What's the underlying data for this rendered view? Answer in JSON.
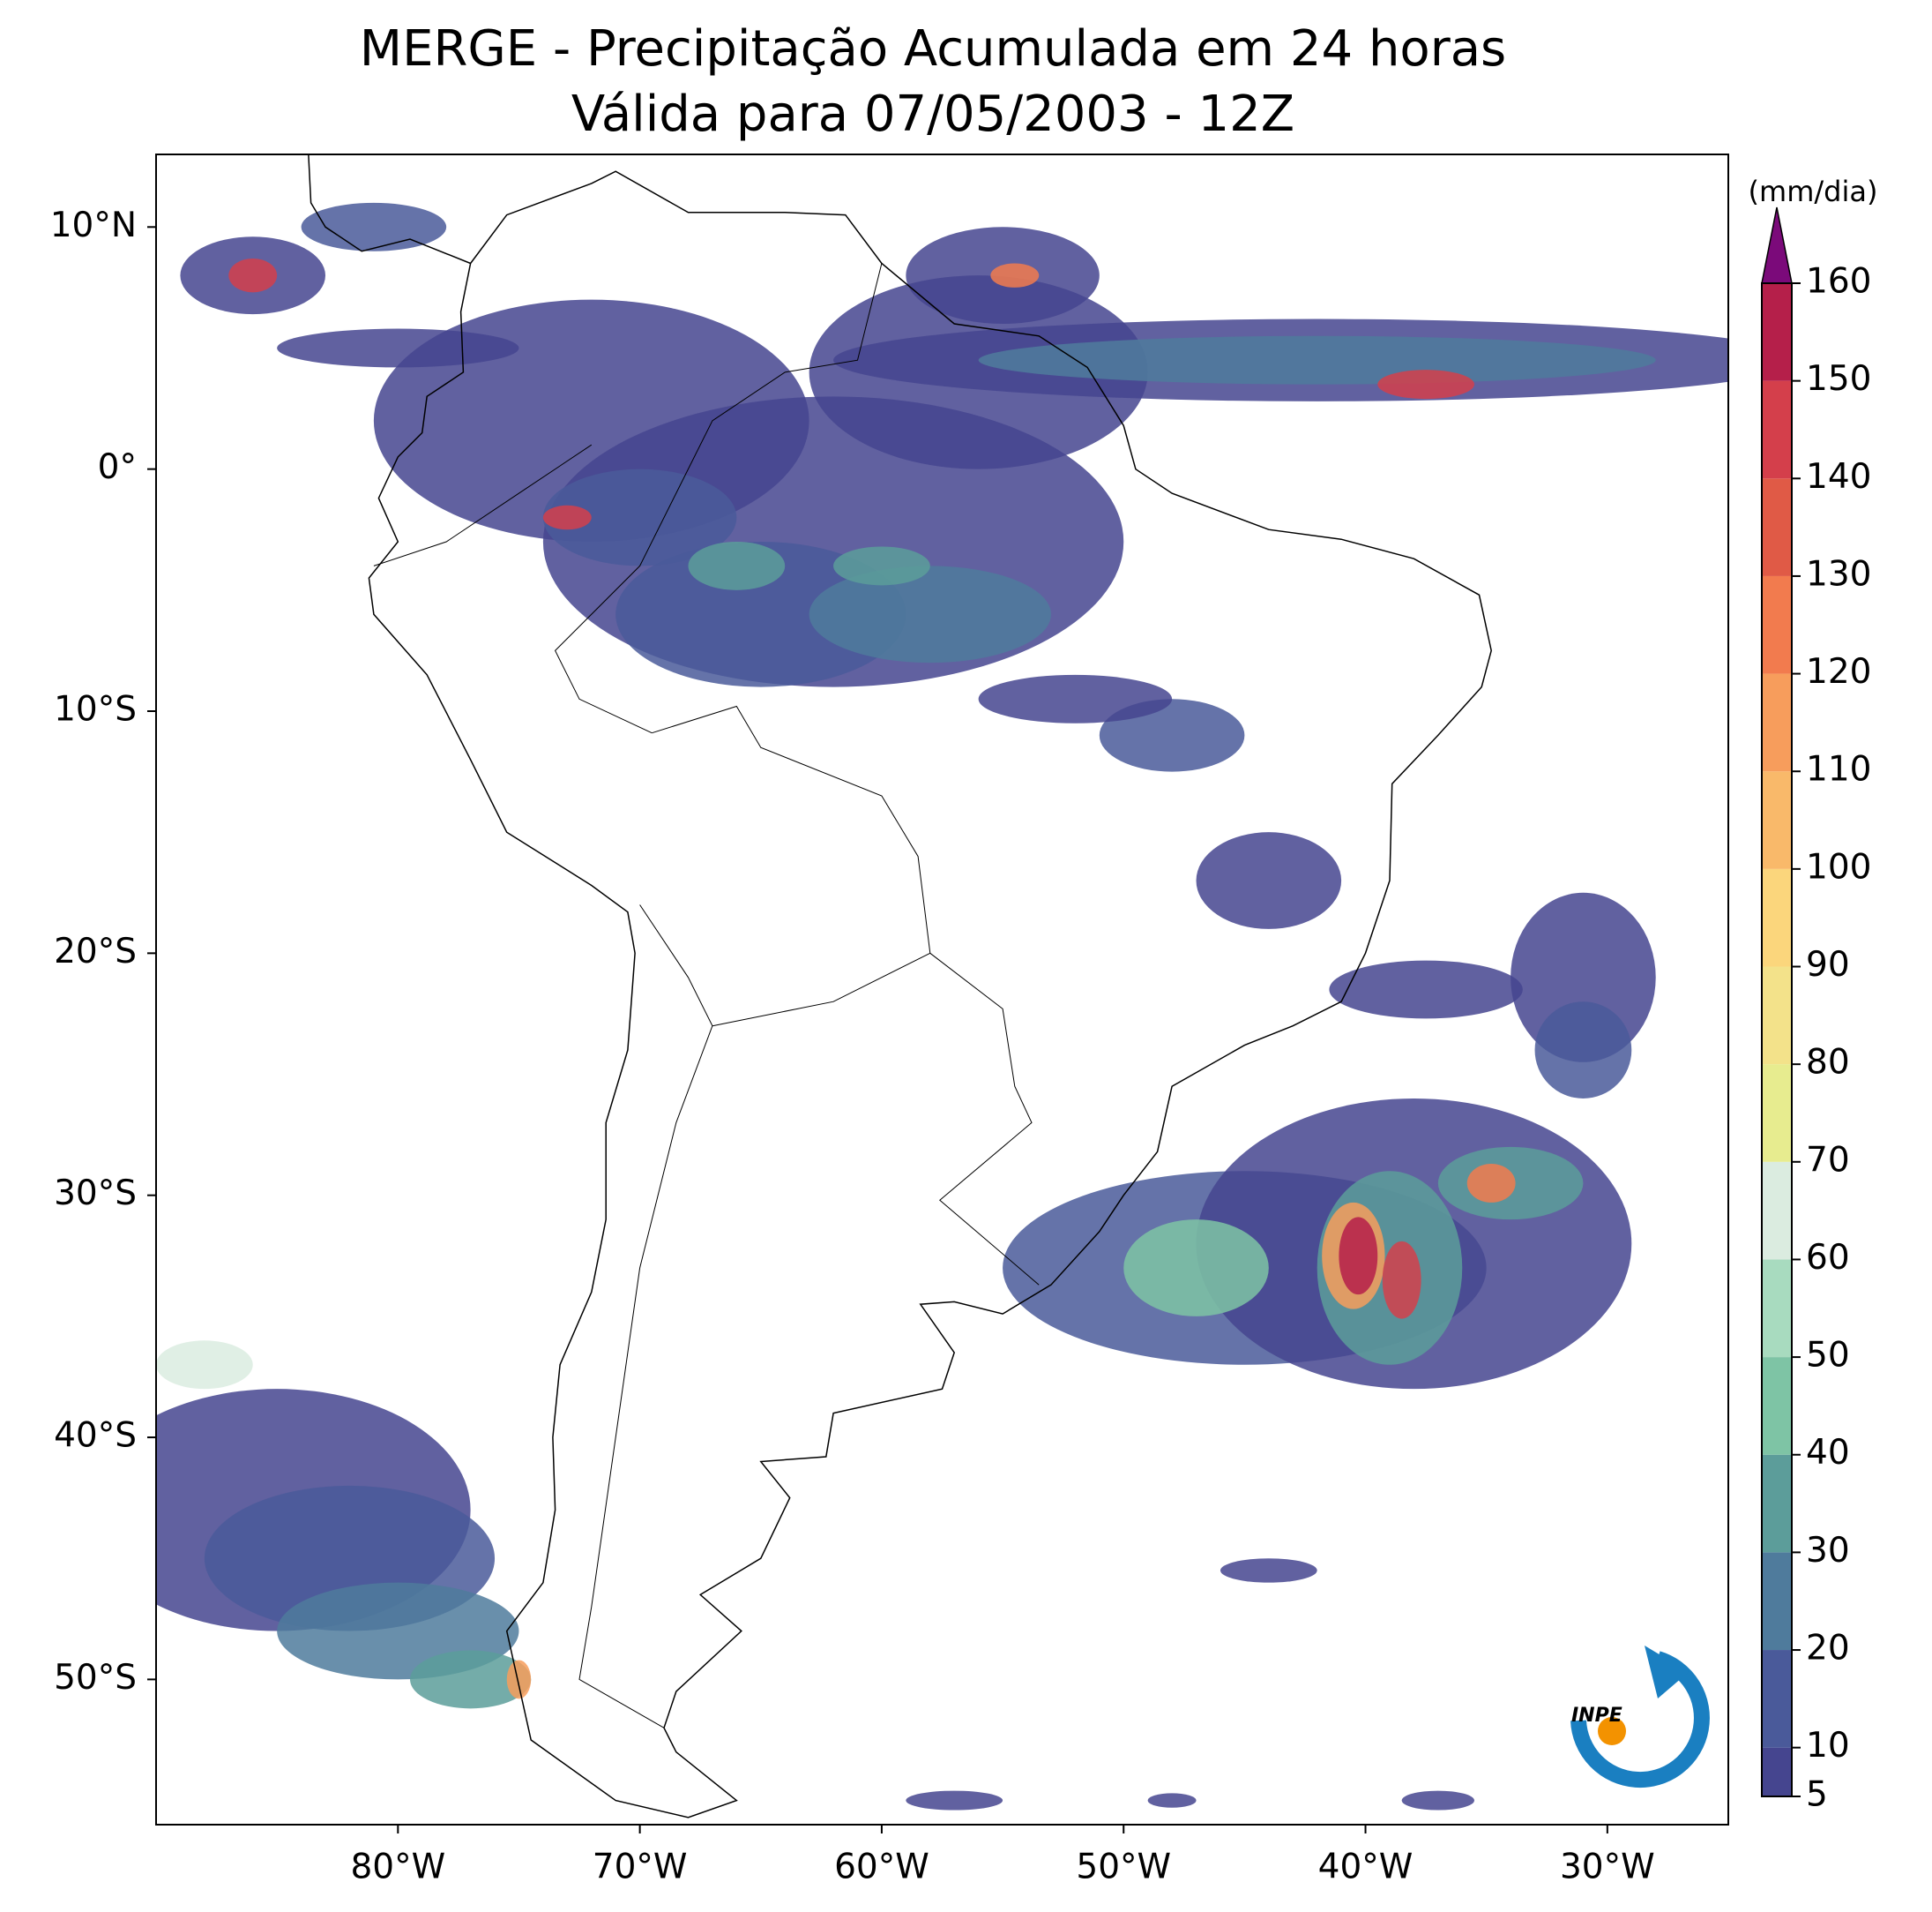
{
  "title": "MERGE - Precipitação Acumulada em 24 horas",
  "subtitle": "Válida para 07/05/2003 - 12Z",
  "map": {
    "xlim": [
      -90,
      -25
    ],
    "ylim": [
      -56,
      13
    ],
    "xticks": [
      {
        "value": -80,
        "label": "80°W"
      },
      {
        "value": -70,
        "label": "70°W"
      },
      {
        "value": -60,
        "label": "60°W"
      },
      {
        "value": -50,
        "label": "50°W"
      },
      {
        "value": -40,
        "label": "40°W"
      },
      {
        "value": -30,
        "label": "30°W"
      }
    ],
    "yticks": [
      {
        "value": 10,
        "label": "10°N"
      },
      {
        "value": 0,
        "label": "0°"
      },
      {
        "value": -10,
        "label": "10°S"
      },
      {
        "value": -20,
        "label": "20°S"
      },
      {
        "value": -30,
        "label": "30°S"
      },
      {
        "value": -40,
        "label": "40°S"
      },
      {
        "value": -50,
        "label": "50°S"
      }
    ]
  },
  "colorbar": {
    "label": "(mm/dia)",
    "ticks": [
      5,
      10,
      20,
      30,
      40,
      50,
      60,
      70,
      80,
      90,
      100,
      110,
      120,
      130,
      140,
      150,
      160
    ],
    "colors": [
      "#45458f",
      "#4a5a9a",
      "#4f7b9c",
      "#5c9d9a",
      "#7ec4a5",
      "#a8dbbf",
      "#dbece0",
      "#e7ec8f",
      "#f3e28a",
      "#fbd67c",
      "#f9b96a",
      "#f79d5c",
      "#f27b4e",
      "#e05a46",
      "#d43f4b",
      "#b51f4a"
    ],
    "extend_color": "#7b0a7a"
  },
  "logo": "INPE"
}
